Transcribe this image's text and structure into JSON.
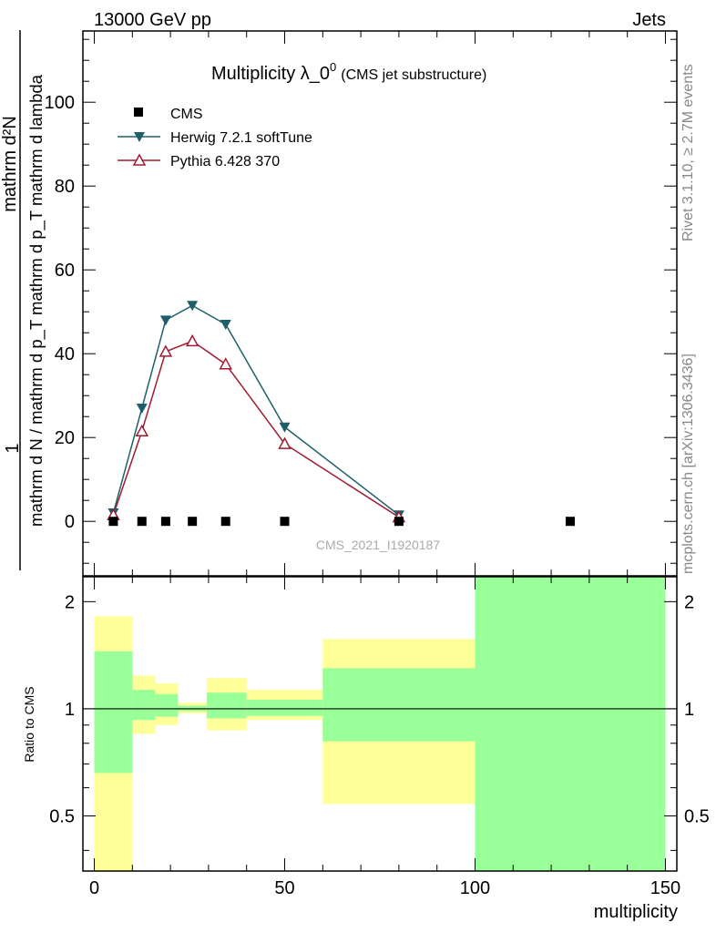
{
  "header": {
    "energy": "13000 GeV pp",
    "category": "Jets"
  },
  "side": {
    "rivet": "Rivet 3.1.10, ≥ 2.7M events",
    "source": "mcplots.cern.ch [arXiv:1306.3436]"
  },
  "chart_data": {
    "type": "line",
    "title": "Multiplicity λ_0",
    "title_superscript": "0",
    "subtitle": "(CMS jet substructure)",
    "analysis_label": "CMS_2021_I1920187",
    "xlabel": "multiplicity",
    "ylabel_line1": "1",
    "ylabel_denominator": "mathrm d N / mathrm d p_T mathrm d p_T mathrm d lambda",
    "ylabel_numerator": "mathrm d²N",
    "ylim": [
      -13,
      117
    ],
    "xlim": [
      -3,
      153
    ],
    "y_ticks": [
      0,
      20,
      40,
      60,
      80,
      100
    ],
    "x_ticks": [
      0,
      50,
      100,
      150
    ],
    "series": [
      {
        "name": "CMS",
        "marker": "square",
        "color": "#000000",
        "x": [
          5,
          12.5,
          18.75,
          25.75,
          34.5,
          50,
          80,
          125
        ],
        "y": [
          0,
          0,
          0,
          0,
          0,
          0,
          0,
          0
        ]
      },
      {
        "name": "Herwig 7.2.1 softTune",
        "marker": "triangle-down",
        "color": "#1f5f6b",
        "x": [
          5,
          12.5,
          18.75,
          25.75,
          34.5,
          50,
          80
        ],
        "y": [
          2.0,
          27.0,
          48.0,
          51.5,
          47.0,
          22.5,
          1.5
        ]
      },
      {
        "name": "Pythia 6.428 370",
        "marker": "triangle-up-open",
        "color": "#a01b30",
        "x": [
          5,
          12.5,
          18.75,
          25.75,
          34.5,
          50,
          80
        ],
        "y": [
          1.5,
          21.5,
          40.5,
          43.0,
          37.5,
          18.5,
          1.0
        ]
      }
    ],
    "ratio": {
      "ylabel": "Ratio to CMS",
      "y_ticks": [
        0.5,
        1,
        2
      ],
      "y_tick_labels": [
        "0.5",
        "1",
        "2"
      ],
      "ylim": [
        0.35,
        2.35
      ],
      "bands": [
        {
          "x0": 0,
          "x1": 10,
          "yellow": [
            0.35,
            1.82
          ],
          "green": [
            0.66,
            1.45
          ]
        },
        {
          "x0": 10,
          "x1": 16,
          "yellow": [
            0.85,
            1.24
          ],
          "green": [
            0.93,
            1.13
          ]
        },
        {
          "x0": 16,
          "x1": 22,
          "yellow": [
            0.9,
            1.18
          ],
          "green": [
            0.95,
            1.1
          ]
        },
        {
          "x0": 22,
          "x1": 29.5,
          "yellow": [
            0.97,
            1.04
          ],
          "green": [
            0.985,
            1.02
          ]
        },
        {
          "x0": 29.5,
          "x1": 40,
          "yellow": [
            0.87,
            1.22
          ],
          "green": [
            0.94,
            1.11
          ]
        },
        {
          "x0": 40,
          "x1": 60,
          "yellow": [
            0.93,
            1.13
          ],
          "green": [
            0.955,
            1.06
          ]
        },
        {
          "x0": 60,
          "x1": 100,
          "yellow": [
            0.54,
            1.57
          ],
          "green": [
            0.81,
            1.3
          ]
        },
        {
          "x0": 100,
          "x1": 150,
          "yellow": [
            0.35,
            2.35
          ],
          "green": [
            0.35,
            2.35
          ]
        }
      ],
      "band_colors": {
        "yellow": "#ffff99",
        "green": "#99ff99"
      }
    }
  }
}
